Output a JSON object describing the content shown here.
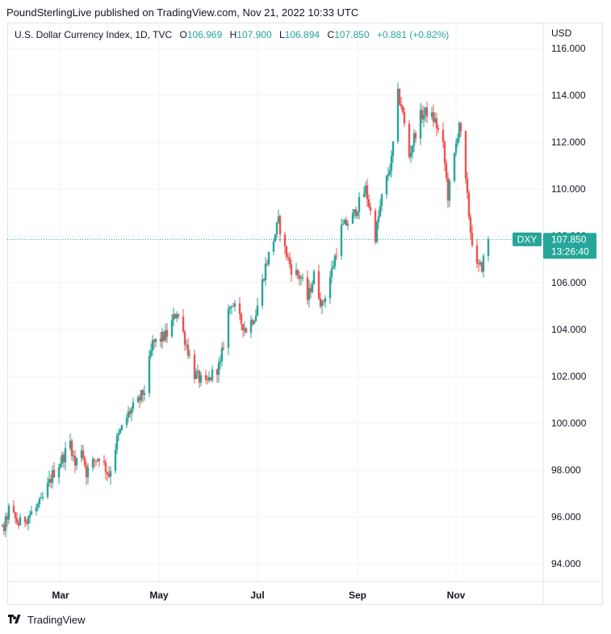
{
  "header": {
    "publisher": "PoundSterlingLive published on TradingView.com, Nov 21, 2022 10:33 UTC"
  },
  "legend": {
    "title": "U.S. Dollar Currency Index, 1D, TVC",
    "open_label": "O",
    "open": "106.969",
    "high_label": "H",
    "high": "107.900",
    "low_label": "L",
    "low": "106.894",
    "close_label": "C",
    "close": "107.850",
    "change": "+0.881 (+0.82%)"
  },
  "price_tag": {
    "symbol": "DXY",
    "price": "107.850",
    "countdown": "13:26:40"
  },
  "footer": {
    "brand": "TradingView"
  },
  "colors": {
    "up": "#26a69a",
    "down": "#ef5350",
    "grid": "#f0f3fa",
    "axis_text": "#131722",
    "tag": "#26a69a"
  },
  "chart_data": {
    "type": "candlestick",
    "currency": "USD",
    "ylim": [
      93.5,
      116.5
    ],
    "ytick_labels": [
      "94.000",
      "96.000",
      "98.000",
      "100.000",
      "102.000",
      "104.000",
      "106.000",
      "108.000",
      "110.000",
      "112.000",
      "114.000",
      "116.000"
    ],
    "xtick_labels": [
      "Mar",
      "May",
      "Jul",
      "Sep",
      "Nov"
    ],
    "grid": true,
    "last_price": 107.85,
    "close_path": [
      {
        "date": "2022-01-10",
        "close": 96.8
      },
      {
        "date": "2022-01-13",
        "close": 97.2
      },
      {
        "date": "2022-01-17",
        "close": 96.2
      },
      {
        "date": "2022-01-20",
        "close": 95.4
      },
      {
        "date": "2022-01-25",
        "close": 95.5
      },
      {
        "date": "2022-01-28",
        "close": 96.3
      },
      {
        "date": "2022-02-03",
        "close": 95.7
      },
      {
        "date": "2022-02-10",
        "close": 96.1
      },
      {
        "date": "2022-02-17",
        "close": 96.6
      },
      {
        "date": "2022-02-24",
        "close": 97.8
      },
      {
        "date": "2022-03-03",
        "close": 98.6
      },
      {
        "date": "2022-03-07",
        "close": 99.2
      },
      {
        "date": "2022-03-10",
        "close": 98.2
      },
      {
        "date": "2022-03-14",
        "close": 99.0
      },
      {
        "date": "2022-03-17",
        "close": 97.9
      },
      {
        "date": "2022-03-22",
        "close": 98.4
      },
      {
        "date": "2022-03-25",
        "close": 98.6
      },
      {
        "date": "2022-03-31",
        "close": 97.8
      },
      {
        "date": "2022-04-05",
        "close": 99.3
      },
      {
        "date": "2022-04-12",
        "close": 100.4
      },
      {
        "date": "2022-04-18",
        "close": 100.9
      },
      {
        "date": "2022-04-22",
        "close": 101.4
      },
      {
        "date": "2022-04-27",
        "close": 103.4
      },
      {
        "date": "2022-05-02",
        "close": 103.6
      },
      {
        "date": "2022-05-06",
        "close": 103.8
      },
      {
        "date": "2022-05-12",
        "close": 104.8
      },
      {
        "date": "2022-05-17",
        "close": 103.6
      },
      {
        "date": "2022-05-23",
        "close": 102.1
      },
      {
        "date": "2022-05-30",
        "close": 101.6
      },
      {
        "date": "2022-06-03",
        "close": 102.1
      },
      {
        "date": "2022-06-08",
        "close": 102.5
      },
      {
        "date": "2022-06-13",
        "close": 104.8
      },
      {
        "date": "2022-06-15",
        "close": 105.2
      },
      {
        "date": "2022-06-20",
        "close": 104.4
      },
      {
        "date": "2022-06-24",
        "close": 104.0
      },
      {
        "date": "2022-06-30",
        "close": 104.7
      },
      {
        "date": "2022-07-06",
        "close": 106.7
      },
      {
        "date": "2022-07-12",
        "close": 108.1
      },
      {
        "date": "2022-07-14",
        "close": 108.6
      },
      {
        "date": "2022-07-18",
        "close": 107.4
      },
      {
        "date": "2022-07-22",
        "close": 106.6
      },
      {
        "date": "2022-07-28",
        "close": 106.2
      },
      {
        "date": "2022-08-01",
        "close": 105.3
      },
      {
        "date": "2022-08-05",
        "close": 106.3
      },
      {
        "date": "2022-08-10",
        "close": 105.0
      },
      {
        "date": "2022-08-16",
        "close": 106.5
      },
      {
        "date": "2022-08-22",
        "close": 108.3
      },
      {
        "date": "2022-08-29",
        "close": 108.8
      },
      {
        "date": "2022-09-06",
        "close": 110.0
      },
      {
        "date": "2022-09-12",
        "close": 108.0
      },
      {
        "date": "2022-09-16",
        "close": 109.6
      },
      {
        "date": "2022-09-22",
        "close": 111.2
      },
      {
        "date": "2022-09-26",
        "close": 114.0
      },
      {
        "date": "2022-09-28",
        "close": 113.6
      },
      {
        "date": "2022-10-03",
        "close": 111.4
      },
      {
        "date": "2022-10-06",
        "close": 112.2
      },
      {
        "date": "2022-10-10",
        "close": 113.1
      },
      {
        "date": "2022-10-14",
        "close": 113.3
      },
      {
        "date": "2022-10-19",
        "close": 112.9
      },
      {
        "date": "2022-10-24",
        "close": 111.8
      },
      {
        "date": "2022-10-27",
        "close": 109.7
      },
      {
        "date": "2022-10-31",
        "close": 111.4
      },
      {
        "date": "2022-11-03",
        "close": 112.9
      },
      {
        "date": "2022-11-08",
        "close": 109.6
      },
      {
        "date": "2022-11-10",
        "close": 108.2
      },
      {
        "date": "2022-11-14",
        "close": 106.6
      },
      {
        "date": "2022-11-17",
        "close": 106.7
      },
      {
        "date": "2022-11-21",
        "close": 107.85
      }
    ]
  }
}
